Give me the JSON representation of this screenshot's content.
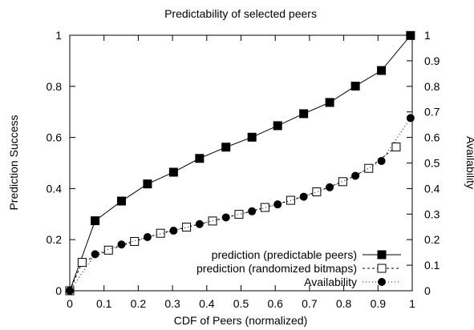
{
  "chart_data": {
    "type": "line",
    "title": "Predictability of selected peers",
    "xlabel": "CDF of Peers (normalized)",
    "ylabel": "Prediction Success",
    "y2label": "Availability",
    "xlim": [
      0,
      1
    ],
    "ylim": [
      0,
      1
    ],
    "y2lim": [
      0,
      1
    ],
    "xticks": [
      "0",
      "0.1",
      "0.2",
      "0.3",
      "0.4",
      "0.5",
      "0.6",
      "0.7",
      "0.8",
      "0.9",
      "1"
    ],
    "yticks": [
      "0",
      "0.2",
      "0.4",
      "0.6",
      "0.8",
      "1"
    ],
    "y2ticks": [
      "0",
      "0.1",
      "0.2",
      "0.3",
      "0.4",
      "0.5",
      "0.6",
      "0.7",
      "0.8",
      "0.9",
      "1"
    ],
    "grid": false,
    "legend_position": "bottom-right",
    "series": [
      {
        "name": "prediction (predictable peers)",
        "axis": "left",
        "marker": "filled-square",
        "line": "solid",
        "x": [
          0.0,
          0.074,
          0.151,
          0.227,
          0.303,
          0.379,
          0.456,
          0.532,
          0.607,
          0.683,
          0.759,
          0.834,
          0.91,
          0.995
        ],
        "y": [
          0.0,
          0.274,
          0.351,
          0.418,
          0.464,
          0.518,
          0.562,
          0.601,
          0.646,
          0.693,
          0.737,
          0.801,
          0.862,
          0.999
        ]
      },
      {
        "name": "prediction (randomized bitmaps)",
        "axis": "left",
        "marker": "open-square",
        "line": "dashed",
        "x": [
          0.0,
          0.036,
          0.113,
          0.189,
          0.265,
          0.341,
          0.417,
          0.494,
          0.57,
          0.645,
          0.721,
          0.797,
          0.873,
          0.953
        ],
        "y": [
          0.0,
          0.111,
          0.159,
          0.193,
          0.225,
          0.249,
          0.273,
          0.299,
          0.326,
          0.354,
          0.387,
          0.427,
          0.479,
          0.563
        ]
      },
      {
        "name": "Availability",
        "axis": "right",
        "marker": "filled-circle",
        "line": "dotted",
        "x": [
          0.0,
          0.074,
          0.151,
          0.227,
          0.303,
          0.379,
          0.456,
          0.532,
          0.607,
          0.683,
          0.759,
          0.834,
          0.91,
          0.995
        ],
        "y": [
          0.0,
          0.143,
          0.181,
          0.21,
          0.235,
          0.261,
          0.287,
          0.311,
          0.338,
          0.368,
          0.405,
          0.45,
          0.508,
          0.676
        ]
      }
    ]
  }
}
